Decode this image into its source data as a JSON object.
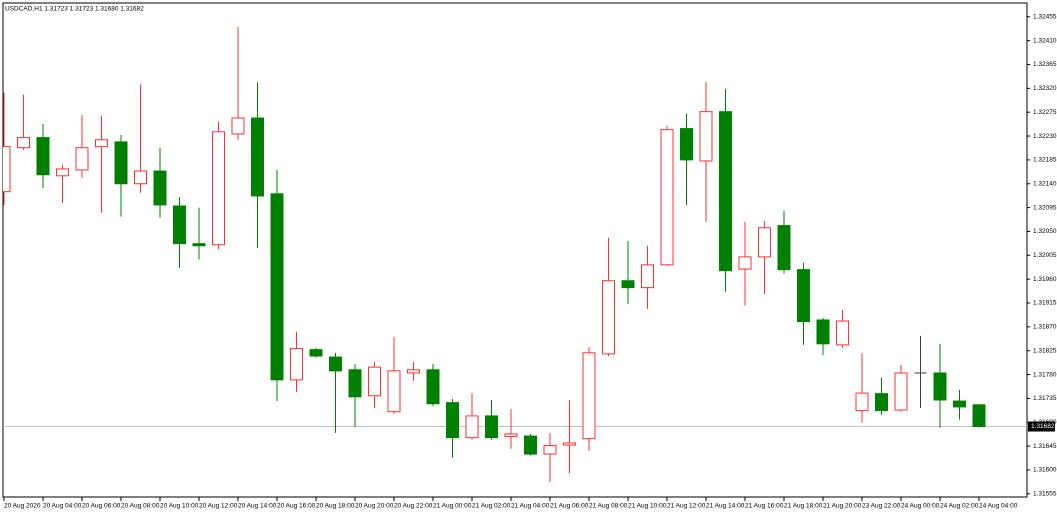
{
  "chart_data": {
    "type": "candlestick",
    "title": "USDCAD,H1  1.31723 1.31723 1.31680 1.31682",
    "open": [
      1.32125,
      1.32208,
      1.32227,
      1.32155,
      1.32166,
      1.3221,
      1.32219,
      1.3214,
      1.32164,
      1.32098,
      1.32027,
      1.32025,
      1.32234,
      1.32264,
      1.32121,
      1.3177,
      1.31827,
      1.31813,
      1.31789,
      1.3174,
      1.3171,
      1.31783,
      1.31789,
      1.31727,
      1.31661,
      1.31702,
      1.31663,
      1.31664,
      1.3163,
      1.31647,
      1.31659,
      1.31819,
      1.31957,
      1.31944,
      1.31987,
      1.32244,
      1.32183,
      1.32276,
      1.31979,
      1.32002,
      1.32061,
      1.31978,
      1.31883,
      1.31836,
      1.31712,
      1.31744,
      1.31713,
      1.31783,
      1.31783,
      1.3173,
      1.31723
    ],
    "high": [
      1.32312,
      1.32308,
      1.32253,
      1.32176,
      1.3227,
      1.32268,
      1.32232,
      1.32327,
      1.32208,
      1.32115,
      1.32095,
      1.32257,
      1.32436,
      1.32331,
      1.32166,
      1.31861,
      1.3183,
      1.31821,
      1.318,
      1.31804,
      1.31851,
      1.31804,
      1.318,
      1.31734,
      1.31745,
      1.31732,
      1.31715,
      1.31668,
      1.3167,
      1.31732,
      1.31832,
      1.32038,
      1.32032,
      1.32023,
      1.32249,
      1.32272,
      1.32332,
      1.32319,
      1.32068,
      1.3207,
      1.32089,
      1.31991,
      1.31887,
      1.31902,
      1.31821,
      1.31774,
      1.31798,
      1.31853,
      1.31838,
      1.31751,
      1.31723
    ],
    "low": [
      1.321,
      1.32204,
      1.32132,
      1.32104,
      1.32151,
      1.32085,
      1.32078,
      1.32123,
      1.32076,
      1.31981,
      1.31997,
      1.32017,
      1.32223,
      1.32019,
      1.3173,
      1.31747,
      1.31812,
      1.3167,
      1.31681,
      1.31717,
      1.31706,
      1.31768,
      1.31721,
      1.31623,
      1.31657,
      1.31657,
      1.3164,
      1.31627,
      1.31577,
      1.31594,
      1.31636,
      1.31815,
      1.31913,
      1.31904,
      1.31985,
      1.321,
      1.32068,
      1.31936,
      1.3191,
      1.31932,
      1.3197,
      1.31836,
      1.31817,
      1.3183,
      1.31689,
      1.31704,
      1.3171,
      1.31717,
      1.3168,
      1.31695,
      1.3168
    ],
    "close": [
      1.3221,
      1.32227,
      1.32157,
      1.32168,
      1.32208,
      1.32223,
      1.3214,
      1.32164,
      1.321,
      1.32027,
      1.32023,
      1.32238,
      1.32264,
      1.32117,
      1.3177,
      1.31829,
      1.31815,
      1.31787,
      1.31738,
      1.31794,
      1.31787,
      1.31789,
      1.31725,
      1.31661,
      1.31702,
      1.31661,
      1.31668,
      1.3163,
      1.31646,
      1.31651,
      1.31821,
      1.31957,
      1.31944,
      1.31987,
      1.32242,
      1.32185,
      1.32276,
      1.31976,
      1.32002,
      1.32057,
      1.31978,
      1.3188,
      1.31838,
      1.31881,
      1.31745,
      1.31712,
      1.31783,
      1.31783,
      1.31732,
      1.31719,
      1.31682
    ],
    "up_color": "#ff3030",
    "down_color": "#008000",
    "flat_color": "#404040",
    "ylim": [
      1.31549,
      1.32481
    ],
    "yticks": [
      1.32455,
      {
        "value": 1.3241,
        "label": "1.32410"
      },
      1.32365,
      {
        "value": 1.3232,
        "label": "1.32320"
      },
      1.32275,
      {
        "value": 1.3223,
        "label": "1.32230"
      },
      1.32185,
      {
        "value": 1.3214,
        "label": "1.32140"
      },
      1.32095,
      {
        "value": 1.3205,
        "label": "1.32050"
      },
      1.32005,
      {
        "value": 1.3196,
        "label": "1.31960"
      },
      1.31915,
      {
        "value": 1.3187,
        "label": "1.31870"
      },
      1.31825,
      {
        "value": 1.3178,
        "label": "1.31780"
      },
      1.31735,
      {
        "value": 1.3169,
        "label": "1.31690"
      },
      1.31645,
      {
        "value": 1.316,
        "label": "1.31600"
      },
      1.31555
    ],
    "xticks": [
      {
        "value": 0,
        "label": "20 Aug 2020"
      },
      {
        "value": 2,
        "label": "20 Aug 04:00"
      },
      {
        "value": 4,
        "label": "20 Aug 06:00"
      },
      {
        "value": 6,
        "label": "20 Aug 08:00"
      },
      {
        "value": 8,
        "label": "20 Aug 10:00"
      },
      {
        "value": 10,
        "label": "20 Aug 12:00"
      },
      {
        "value": 12,
        "label": "20 Aug 14:00"
      },
      {
        "value": 14,
        "label": "20 Aug 16:00"
      },
      {
        "value": 16,
        "label": "20 Aug 18:00"
      },
      {
        "value": 18,
        "label": "20 Aug 20:00"
      },
      {
        "value": 20,
        "label": "20 Aug 22:00"
      },
      {
        "value": 22,
        "label": "21 Aug 00:00"
      },
      {
        "value": 24,
        "label": "21 Aug 02:00"
      },
      {
        "value": 26,
        "label": "21 Aug 04:00"
      },
      {
        "value": 28,
        "label": "21 Aug 06:00"
      },
      {
        "value": 30,
        "label": "21 Aug 08:00"
      },
      {
        "value": 32,
        "label": "21 Aug 10:00"
      },
      {
        "value": 34,
        "label": "21 Aug 12:00"
      },
      {
        "value": 36,
        "label": "21 Aug 14:00"
      },
      {
        "value": 38,
        "label": "21 Aug 16:00"
      },
      {
        "value": 40,
        "label": "21 Aug 18:00"
      },
      {
        "value": 42,
        "label": "21 Aug 20:00"
      },
      {
        "value": 44,
        "label": "23 Aug 22:00"
      },
      {
        "value": 46,
        "label": "24 Aug 00:00"
      },
      {
        "value": 48,
        "label": "24 Aug 02:00"
      },
      {
        "value": 50,
        "label": "24 Aug 04:00"
      }
    ]
  }
}
